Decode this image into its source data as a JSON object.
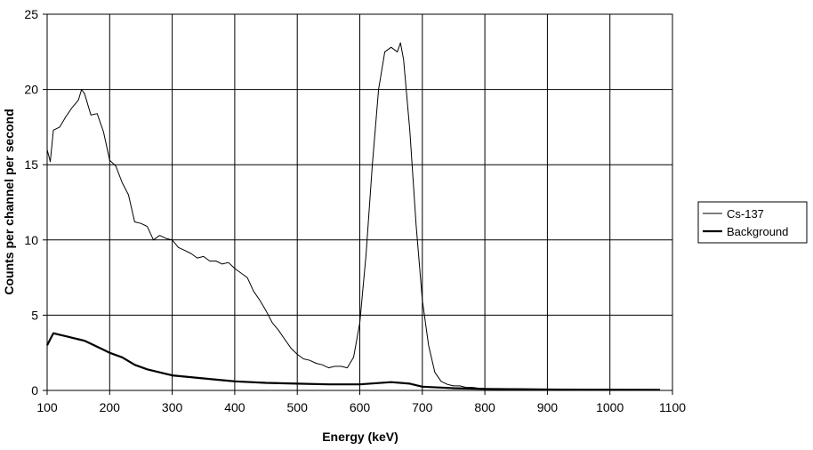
{
  "chart_data": {
    "type": "line",
    "title": "",
    "xlabel": "Energy (keV)",
    "ylabel": "Counts per channel per second",
    "xlim": [
      100,
      1100
    ],
    "ylim": [
      0,
      25
    ],
    "xticks": [
      "100",
      "200",
      "300",
      "400",
      "500",
      "600",
      "700",
      "800",
      "900",
      "1000",
      "1100"
    ],
    "yticks": [
      "0",
      "5",
      "10",
      "15",
      "20",
      "25"
    ],
    "grid": true,
    "legend_position": "right",
    "series": [
      {
        "name": "Cs-137",
        "color": "#000000",
        "weight": "thin",
        "x": [
          100,
          105,
          110,
          120,
          130,
          140,
          150,
          155,
          160,
          170,
          180,
          190,
          200,
          210,
          220,
          230,
          240,
          250,
          260,
          270,
          280,
          290,
          300,
          310,
          320,
          330,
          340,
          350,
          360,
          370,
          380,
          390,
          400,
          410,
          420,
          430,
          440,
          450,
          460,
          470,
          480,
          490,
          500,
          510,
          520,
          530,
          540,
          550,
          560,
          570,
          580,
          590,
          600,
          610,
          620,
          630,
          640,
          650,
          660,
          665,
          670,
          680,
          690,
          700,
          710,
          720,
          730,
          740,
          750,
          760,
          770,
          780,
          790,
          800,
          850,
          900,
          950,
          1000,
          1050,
          1080
        ],
        "y": [
          16,
          15.2,
          17.3,
          17.5,
          18.2,
          18.8,
          19.3,
          20,
          19.7,
          18.3,
          18.4,
          17.2,
          15.3,
          14.9,
          13.8,
          13,
          11.2,
          11.1,
          10.9,
          10,
          10.3,
          10.1,
          10,
          9.5,
          9.3,
          9.1,
          8.8,
          8.9,
          8.6,
          8.6,
          8.4,
          8.5,
          8.1,
          7.8,
          7.5,
          6.6,
          6,
          5.3,
          4.5,
          4,
          3.4,
          2.8,
          2.4,
          2.1,
          2,
          1.8,
          1.7,
          1.5,
          1.6,
          1.6,
          1.5,
          2.2,
          4.5,
          9,
          15,
          20,
          22.5,
          22.8,
          22.5,
          23.1,
          22,
          17.3,
          11,
          6,
          3,
          1.2,
          0.6,
          0.4,
          0.3,
          0.3,
          0.2,
          0.2,
          0.15,
          0.12,
          0.1,
          0.08,
          0.06,
          0.06,
          0.05,
          0.04
        ]
      },
      {
        "name": "Background",
        "color": "#000000",
        "weight": "thick",
        "x": [
          100,
          110,
          120,
          130,
          140,
          150,
          160,
          170,
          180,
          190,
          200,
          220,
          240,
          260,
          280,
          300,
          350,
          400,
          450,
          500,
          550,
          600,
          650,
          680,
          700,
          750,
          800,
          900,
          1000,
          1080
        ],
        "y": [
          3,
          3.8,
          3.7,
          3.6,
          3.5,
          3.4,
          3.3,
          3.1,
          2.9,
          2.7,
          2.5,
          2.2,
          1.7,
          1.4,
          1.2,
          1.0,
          0.8,
          0.6,
          0.5,
          0.45,
          0.4,
          0.4,
          0.55,
          0.45,
          0.25,
          0.15,
          0.1,
          0.06,
          0.05,
          0.04
        ]
      }
    ]
  }
}
